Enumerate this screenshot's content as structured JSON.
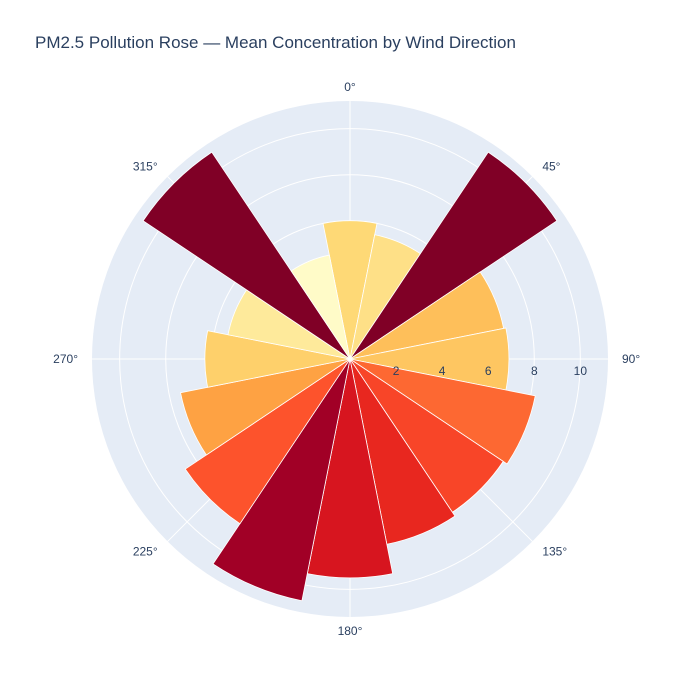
{
  "chart_data": {
    "type": "barpolar",
    "title": "PM2.5 Pollution Rose — Mean Concentration by Wind Direction",
    "theta": [
      0,
      22.5,
      45,
      67.5,
      90,
      112.5,
      135,
      157.5,
      180,
      202.5,
      225,
      247.5,
      270,
      292.5,
      315,
      337.5
    ],
    "values": [
      6.0,
      5.5,
      10.8,
      6.8,
      6.9,
      8.2,
      8.0,
      8.2,
      9.5,
      10.7,
      8.6,
      7.5,
      6.3,
      5.4,
      10.8,
      4.6
    ],
    "colors": [
      "#fed976",
      "#fee087",
      "#800026",
      "#febf5a",
      "#fec661",
      "#fd6832",
      "#f84528",
      "#e8271f",
      "#d7151f",
      "#a10026",
      "#fd532c",
      "#fea243",
      "#fed06b",
      "#feea9b",
      "#800026",
      "#fffbc8"
    ],
    "angular_tick_labels": [
      "0°",
      "45°",
      "90°",
      "135°",
      "180°",
      "225°",
      "270°",
      "315°"
    ],
    "radial_tick_labels": [
      "2",
      "4",
      "6",
      "8",
      "10"
    ],
    "radial_tick_values": [
      2,
      4,
      6,
      8,
      10
    ],
    "radial_range": [
      0,
      11.2
    ],
    "angular_direction": "clockwise",
    "angular_rotation": "north",
    "grid": true,
    "polar_bgcolor": "#e5ecf6"
  }
}
